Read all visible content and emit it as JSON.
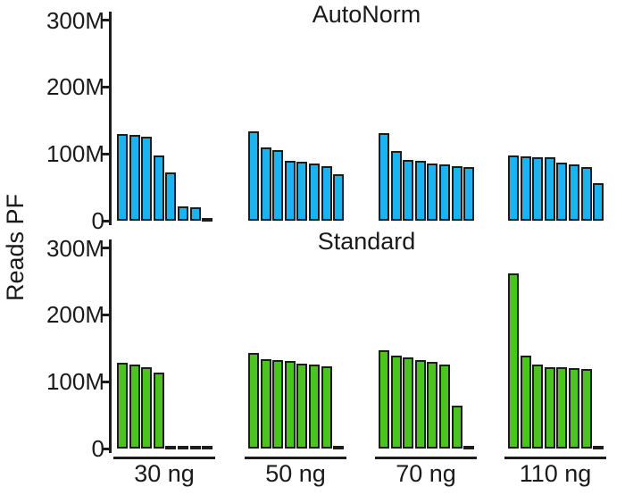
{
  "chart_data": {
    "type": "bar",
    "ylabel": "Reads PF",
    "unit": "M (million reads)",
    "grid": false,
    "legend": "none",
    "ylim_m": [
      0,
      310
    ],
    "categories": [
      "30 ng",
      "50 ng",
      "70 ng",
      "110 ng"
    ],
    "yticks": [
      {
        "value": 0,
        "label": "0"
      },
      {
        "value": 100,
        "label": "100M"
      },
      {
        "value": 200,
        "label": "200M"
      },
      {
        "value": 300,
        "label": "300M"
      }
    ],
    "panels": [
      {
        "title": "AutoNorm",
        "bar_color": "#1CB4F0",
        "bar_outline": "#1d1d1d",
        "groups": [
          {
            "category": "30 ng",
            "values_m": [
              130,
              128,
              125,
              98,
              72,
              21,
              20,
              4
            ]
          },
          {
            "category": "50 ng",
            "values_m": [
              134,
              110,
              106,
              90,
              88,
              86,
              81,
              69
            ]
          },
          {
            "category": "70 ng",
            "values_m": [
              131,
              104,
              91,
              89,
              85,
              84,
              81,
              80
            ]
          },
          {
            "category": "110 ng",
            "values_m": [
              98,
              96,
              95,
              95,
              87,
              84,
              80,
              56
            ]
          }
        ]
      },
      {
        "title": "Standard",
        "bar_color": "#4CC420",
        "bar_outline": "#1d1d1d",
        "groups": [
          {
            "category": "30 ng",
            "values_m": [
              128,
              126,
              121,
              114,
              4,
              4,
              4,
              4
            ]
          },
          {
            "category": "50 ng",
            "values_m": [
              143,
              134,
              133,
              131,
              127,
              126,
              123,
              4
            ]
          },
          {
            "category": "70 ng",
            "values_m": [
              147,
              139,
              137,
              133,
              130,
              125,
              64,
              4
            ]
          },
          {
            "category": "110 ng",
            "values_m": [
              262,
              139,
              125,
              122,
              121,
              120,
              119,
              4
            ]
          }
        ]
      }
    ]
  }
}
